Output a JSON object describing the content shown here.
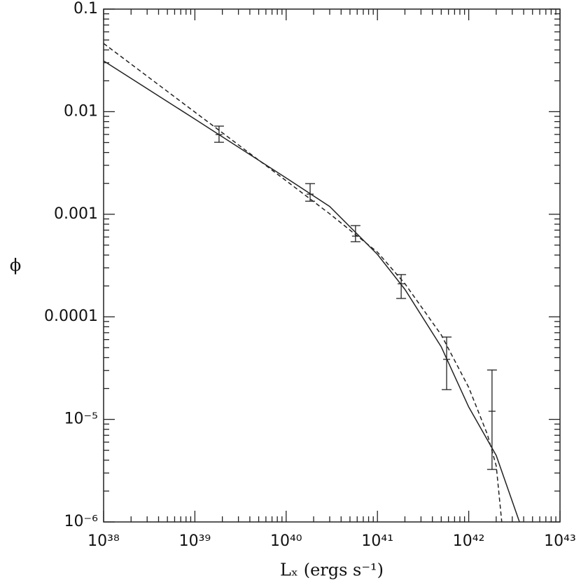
{
  "chart_data": {
    "type": "scatter",
    "x_label": "Lₓ (ergs s⁻¹)",
    "y_label": "ϕ",
    "xscale": "log",
    "yscale": "log",
    "xlim": [
      1e+38,
      1e+43
    ],
    "ylim": [
      1e-06,
      0.1
    ],
    "xticks": [
      {
        "value": 1e+38,
        "label": "10³⁸"
      },
      {
        "value": 1e+39,
        "label": "10³⁹"
      },
      {
        "value": 1e+40,
        "label": "10⁴⁰"
      },
      {
        "value": 1e+41,
        "label": "10⁴¹"
      },
      {
        "value": 1e+42,
        "label": "10⁴²"
      },
      {
        "value": 1e+43,
        "label": "10⁴³"
      }
    ],
    "yticks": [
      {
        "value": 1e-06,
        "label": "10⁻⁶"
      },
      {
        "value": 1e-05,
        "label": "10⁻⁵"
      },
      0.0001,
      0.001,
      0.01,
      0.1
    ],
    "points": {
      "color": "#222",
      "x": [
        1.84e+39,
        1.83e+40,
        5.75e+40,
        1.82e+41,
        5.73e+41,
        1.8e+42
      ],
      "values": [
        0.00598,
        0.00157,
        0.000612,
        0.00021,
        3.85e-05,
        1.2e-05
      ],
      "lower": [
        0.00503,
        0.00134,
        0.00054,
        0.000151,
        1.95e-05,
        3.25e-06
      ],
      "upper": [
        0.00723,
        0.00199,
        0.000775,
        0.000258,
        6.35e-05,
        3.03e-05
      ]
    },
    "series": [
      {
        "type": "line",
        "color": "#222",
        "dash": false,
        "x": [
          1e+38,
          1e+39,
          1e+40,
          3e+40,
          1e+41,
          2e+41,
          5e+41,
          1e+42,
          2e+42,
          3.6e+42
        ],
        "values": [
          0.0313,
          0.00847,
          0.00226,
          0.00119,
          0.000406,
          0.000185,
          5.1e-05,
          1.32e-05,
          4.45e-06,
          1e-06
        ]
      },
      {
        "type": "line",
        "color": "#222",
        "dash": true,
        "x": [
          1e+38,
          1e+39,
          1e+40,
          3e+40,
          1e+41,
          2e+41,
          5e+41,
          1e+42,
          1.6e+42,
          2e+42,
          2.3e+42
        ],
        "values": [
          0.0463,
          0.0099,
          0.00212,
          0.00101,
          0.000427,
          0.00021,
          6.67e-05,
          2.05e-05,
          7.15e-06,
          3.52e-06,
          1e-06
        ]
      }
    ]
  }
}
